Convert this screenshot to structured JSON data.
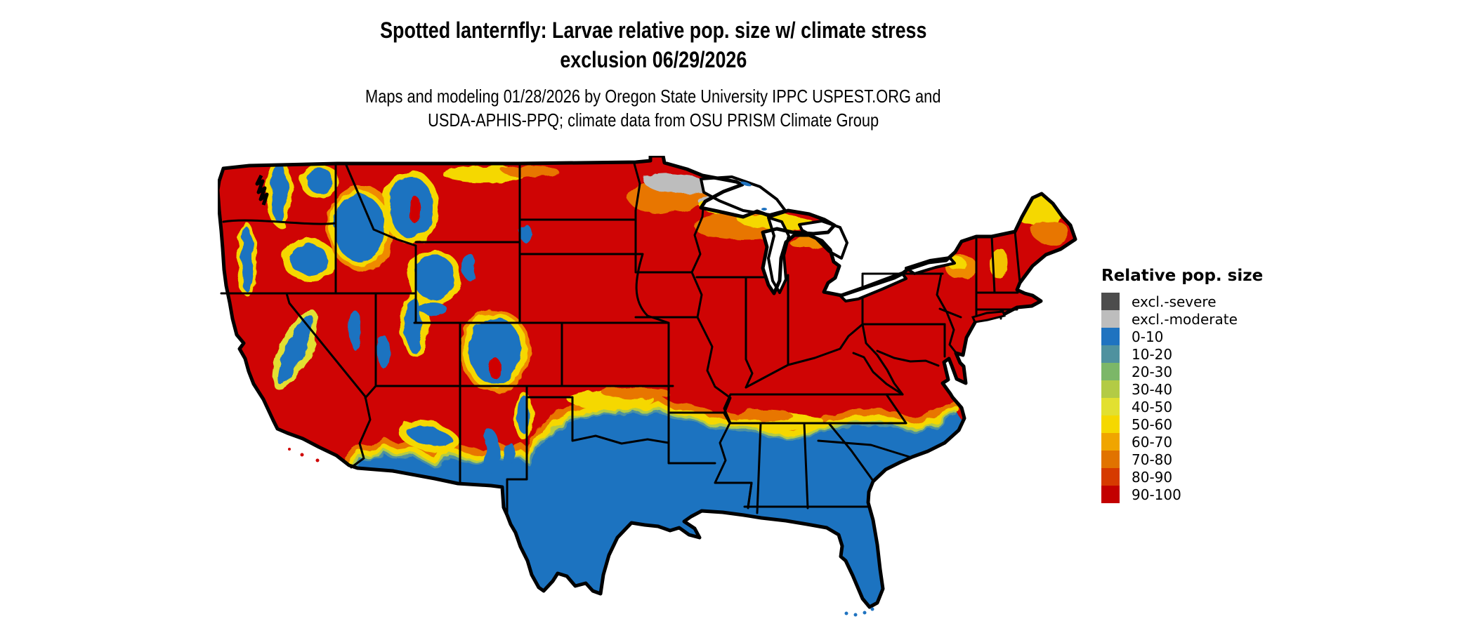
{
  "title": {
    "line1": "Spotted lanternfly: Larvae relative pop. size w/ climate stress",
    "line2": "exclusion 06/29/2026"
  },
  "subtitle": {
    "line1": "Maps and modeling 01/28/2026 by Oregon State University IPPC USPEST.ORG and",
    "line2": "USDA-APHIS-PPQ; climate data from OSU PRISM Climate Group"
  },
  "legend": {
    "title": "Relative pop. size",
    "items": [
      {
        "label": "excl.-severe",
        "color": "#4d4d4d"
      },
      {
        "label": "excl.-moderate",
        "color": "#bdbdbd"
      },
      {
        "label": "0-10",
        "color": "#1f73c0"
      },
      {
        "label": "10-20",
        "color": "#4f929f"
      },
      {
        "label": "20-30",
        "color": "#7cb768"
      },
      {
        "label": "30-40",
        "color": "#b3cb45"
      },
      {
        "label": "40-50",
        "color": "#e2e030"
      },
      {
        "label": "50-60",
        "color": "#f5d800"
      },
      {
        "label": "60-70",
        "color": "#f0a500"
      },
      {
        "label": "70-80",
        "color": "#e17300"
      },
      {
        "label": "80-90",
        "color": "#d63a00"
      },
      {
        "label": "90-100",
        "color": "#c30000"
      }
    ]
  },
  "map": {
    "name": "Continental United States raster map with state borders",
    "dominant_value": "90-100 (red) over most of the continental U.S.",
    "regions": [
      "Southern zone (southern CA/AZ/NM deserts, most of Texas, Gulf Coast, Florida, coastal Carolinas): 0-10 (blue)",
      "Mottled 10-80 transition band along the northern edge of the blue zone",
      "Mountain West (Cascades, Sierra Nevada, Idaho/W-Montana Rockies, Yellowstone, Utah ranges, Colorado Rockies): 0-10 blue with 30-70 yellow/orange fringes",
      "Northern Minnesota: excl.-moderate (gray) patches with 60-80 orange fringe",
      "Northern Wisconsin / Upper Michigan: 50-80 yellow-orange band",
      "Northern Maine, Adirondacks, White Mountains: 40-80 yellow-orange",
      "Great Lakes and surrounding ocean: white background"
    ]
  }
}
